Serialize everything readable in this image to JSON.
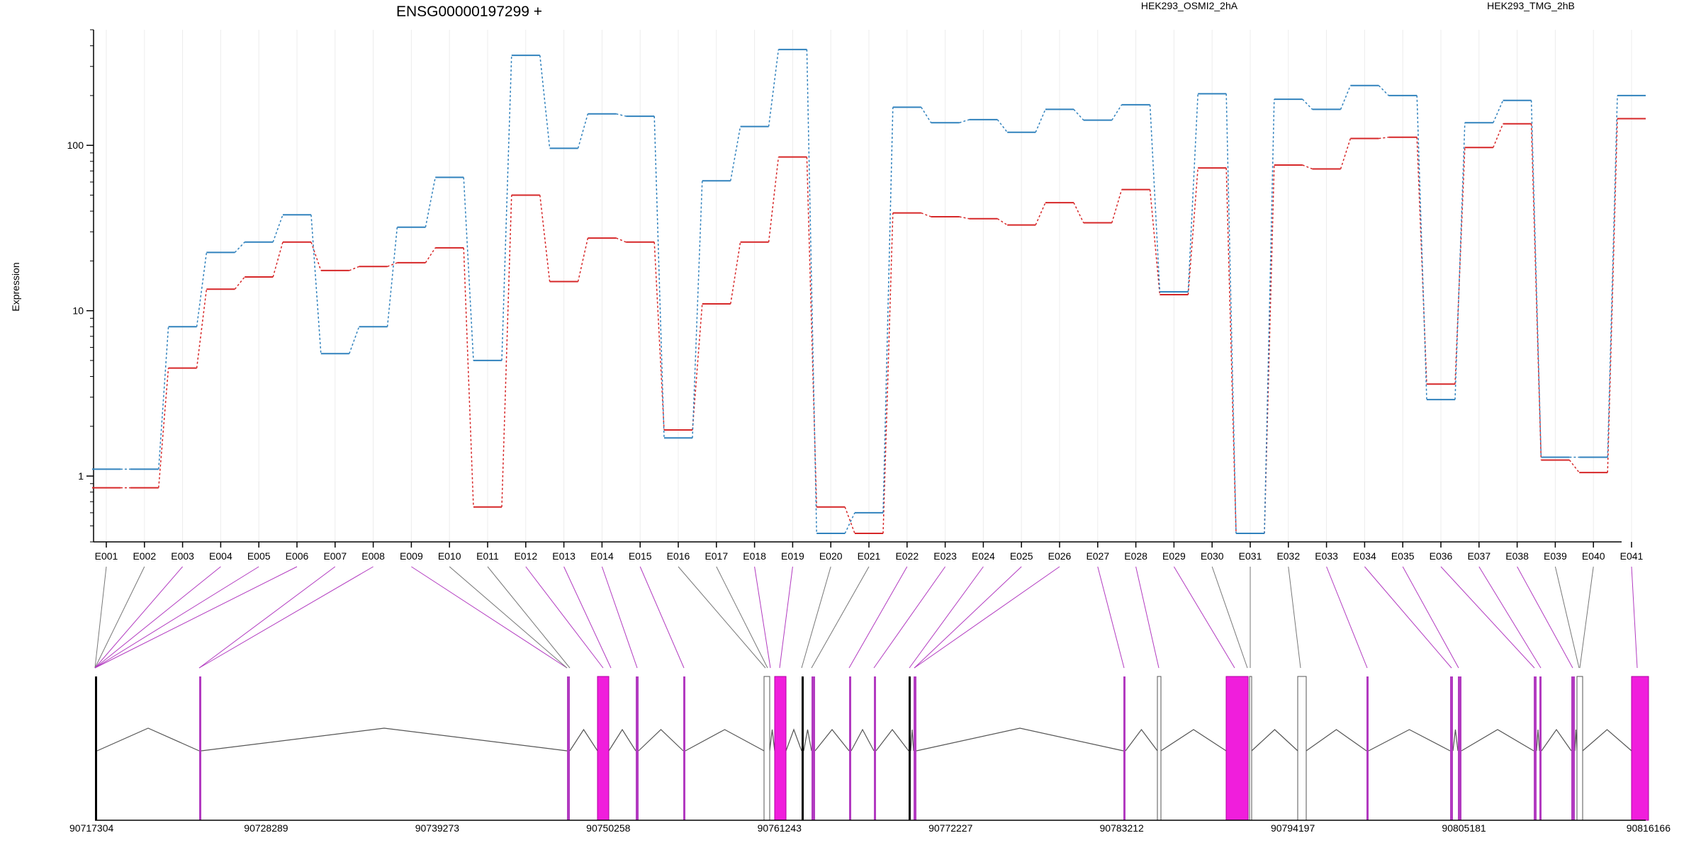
{
  "chart_data": {
    "type": "line",
    "title": "ENSG00000197299 +",
    "ylabel": "Expression",
    "xlabel": "",
    "y_scale": "log",
    "ylim": [
      0.4,
      500
    ],
    "y_ticks": [
      1,
      10,
      100
    ],
    "y_tick_labels": [
      "1",
      "10",
      "100"
    ],
    "categories": [
      "E001",
      "E002",
      "E003",
      "E004",
      "E005",
      "E006",
      "E007",
      "E008",
      "E009",
      "E010",
      "E011",
      "E012",
      "E013",
      "E014",
      "E015",
      "E016",
      "E017",
      "E018",
      "E019",
      "E020",
      "E021",
      "E022",
      "E023",
      "E024",
      "E025",
      "E026",
      "E027",
      "E028",
      "E029",
      "E030",
      "E031",
      "E032",
      "E033",
      "E034",
      "E035",
      "E036",
      "E037",
      "E038",
      "E039",
      "E040",
      "E041"
    ],
    "series": [
      {
        "name": "HEK293_OSMI2_2hA",
        "color": "#d62728",
        "values": [
          0.85,
          0.85,
          4.5,
          13.5,
          16,
          26,
          17.5,
          18.5,
          19.5,
          24,
          0.65,
          50,
          15,
          27.5,
          26,
          1.9,
          11,
          26,
          85,
          0.65,
          0.45,
          39,
          37,
          36,
          33,
          45,
          34,
          54,
          12.5,
          73,
          0.45,
          76,
          72,
          110,
          112,
          3.6,
          97,
          135,
          1.25,
          1.05,
          145
        ]
      },
      {
        "name": "HEK293_TMG_2hB",
        "color": "#3182bd",
        "values": [
          1.1,
          1.1,
          8,
          22.5,
          26,
          38,
          5.5,
          8,
          32,
          64,
          5,
          350,
          96,
          155,
          150,
          1.7,
          61,
          130,
          380,
          0.45,
          0.6,
          170,
          137,
          143,
          120,
          165,
          142,
          176,
          13,
          205,
          0.45,
          190,
          165,
          230,
          200,
          2.9,
          137,
          187,
          1.3,
          1.3,
          200
        ]
      }
    ],
    "legend_position": "top",
    "legend": [
      "HEK293_OSMI2_2hA",
      "HEK293_TMG_2hB"
    ],
    "gene_model": {
      "coordinate_labels": [
        "90717304",
        "90728289",
        "90739273",
        "90750258",
        "90761243",
        "90772227",
        "90783212",
        "90794197",
        "90805181",
        "90816166"
      ],
      "highlight_color": "#f01edc"
    }
  }
}
